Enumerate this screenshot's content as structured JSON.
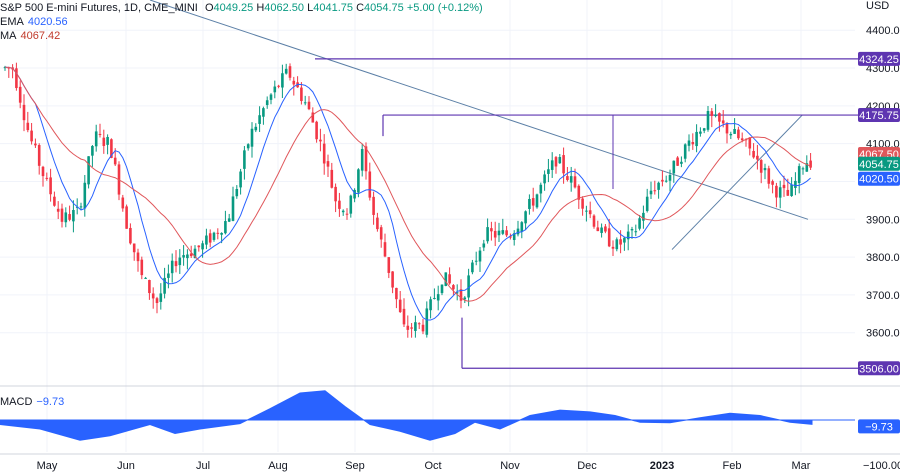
{
  "header": {
    "title": "S&P 500 E-mini Futures, 1D, CME_MINI",
    "open_label": "O",
    "open": "4049.25",
    "high_label": "H",
    "high": "4062.50",
    "low_label": "L",
    "low": "4041.75",
    "close_label": "C",
    "close": "4054.75",
    "change": "+5.00 (+0.12%)",
    "ema_label": "EMA",
    "ema_value": "4020.56",
    "ma_label": "MA",
    "ma_value": "4067.42"
  },
  "macd": {
    "label": "MACD",
    "value": "−9.73"
  },
  "colors": {
    "up": "#089981",
    "down": "#f23645",
    "ema": "#2962ff",
    "ma": "#e0575b",
    "trendline": "#5b7fa6",
    "level": "#5e35b1",
    "macd_fill": "#2962ff"
  },
  "chart_data": [
    {
      "type": "candlestick",
      "title": "S&P 500 E-mini Futures, 1D, CME_MINI",
      "y_axis_label": "USD",
      "y_ticks": [
        3600,
        3700,
        3800,
        3900,
        4000,
        4100,
        4200,
        4300,
        4400
      ],
      "ylim": [
        3475,
        4480
      ],
      "x_tick_labels": [
        "May",
        "Jun",
        "Jul",
        "Aug",
        "Sep",
        "Oct",
        "Nov",
        "Dec",
        "2023",
        "Feb",
        "Mar"
      ],
      "price_path": [
        [
          "May",
          4300
        ],
        [
          "May",
          4120
        ],
        [
          "May",
          4000
        ],
        [
          "May",
          3900
        ],
        [
          "May",
          3920
        ],
        [
          "Jun",
          4120
        ],
        [
          "Jun",
          4100
        ],
        [
          "Jun",
          3900
        ],
        [
          "Jun",
          3750
        ],
        [
          "Jun",
          3680
        ],
        [
          "Jul",
          3800
        ],
        [
          "Jul",
          3830
        ],
        [
          "Jul",
          3900
        ],
        [
          "Aug",
          4120
        ],
        [
          "Aug",
          4220
        ],
        [
          "Aug",
          4290
        ],
        [
          "Aug",
          4200
        ],
        [
          "Sep",
          4080
        ],
        [
          "Sep",
          3950
        ],
        [
          "Sep",
          3920
        ],
        [
          "Sep",
          4080
        ],
        [
          "Sep",
          3900
        ],
        [
          "Sep",
          3780
        ],
        [
          "Oct",
          3610
        ],
        [
          "Oct",
          3620
        ],
        [
          "Oct",
          3750
        ],
        [
          "Oct",
          3690
        ],
        [
          "Nov",
          3860
        ],
        [
          "Nov",
          3860
        ],
        [
          "Nov",
          3960
        ],
        [
          "Dec",
          4060
        ],
        [
          "Dec",
          4000
        ],
        [
          "Dec",
          3930
        ],
        [
          "Dec",
          3860
        ],
        [
          "Dec",
          3830
        ],
        [
          "2023",
          3860
        ],
        [
          "2023",
          3980
        ],
        [
          "2023",
          4020
        ],
        [
          "2023",
          4100
        ],
        [
          "Feb",
          4170
        ],
        [
          "Feb",
          4130
        ],
        [
          "Feb",
          4070
        ],
        [
          "Mar",
          3980
        ],
        [
          "Mar",
          3960
        ],
        [
          "Mar",
          4054.75
        ]
      ],
      "levels": [
        {
          "label": "4324.25",
          "value": 4324.25
        },
        {
          "label": "4175.75",
          "value": 4175.75
        },
        {
          "label": "3506.00",
          "value": 3506.0
        }
      ],
      "price_labels": [
        {
          "label": "4067.50",
          "value": 4067.5,
          "color": "#e0575b"
        },
        {
          "label": "4054.75",
          "value": 4054.75,
          "color": "#089981"
        },
        {
          "label": "4020.50",
          "value": 4020.5,
          "color": "#2962ff"
        }
      ],
      "series": [
        {
          "name": "EMA",
          "value": 4020.56
        },
        {
          "name": "MA",
          "value": 4067.42
        }
      ]
    },
    {
      "type": "area",
      "title": "MACD",
      "y_ticks": [
        -100
      ],
      "current_value_label": "−9.73",
      "current_value": -9.73
    }
  ]
}
